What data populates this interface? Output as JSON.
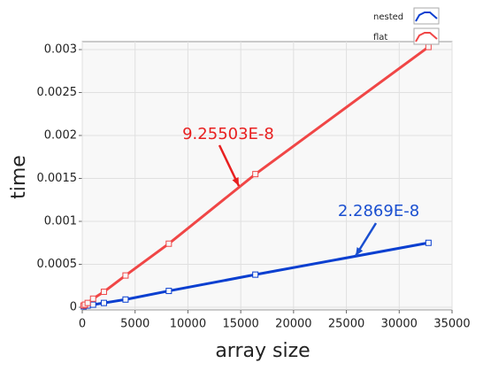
{
  "chart_data": {
    "type": "line",
    "x_label": "array size",
    "y_label": "time",
    "x": [
      128,
      256,
      512,
      1024,
      2048,
      4096,
      8192,
      16384,
      32768
    ],
    "series": [
      {
        "name": "nested",
        "color": "#0a3fd0",
        "values": [
          1e-05,
          2e-05,
          2e-05,
          3e-05,
          5e-05,
          9e-05,
          0.00019,
          0.00038,
          0.00075
        ]
      },
      {
        "name": "flat",
        "color": "#f04646",
        "values": [
          2e-05,
          3e-05,
          5e-05,
          0.0001,
          0.00018,
          0.00037,
          0.00074,
          0.00155,
          0.00303
        ]
      }
    ],
    "xlim": [
      0,
      35000
    ],
    "xticks": [
      0,
      5000,
      10000,
      15000,
      20000,
      25000,
      30000,
      35000
    ],
    "ylim": [
      0,
      0.003
    ],
    "yticks": [
      0,
      0.0005,
      0.001,
      0.0015,
      0.002,
      0.0025,
      0.003
    ],
    "grid": true,
    "annotations": [
      {
        "text": "9.25503E-8",
        "color": "#e82020"
      },
      {
        "text": "2.2869E-8",
        "color": "#1a4fd0"
      }
    ]
  }
}
